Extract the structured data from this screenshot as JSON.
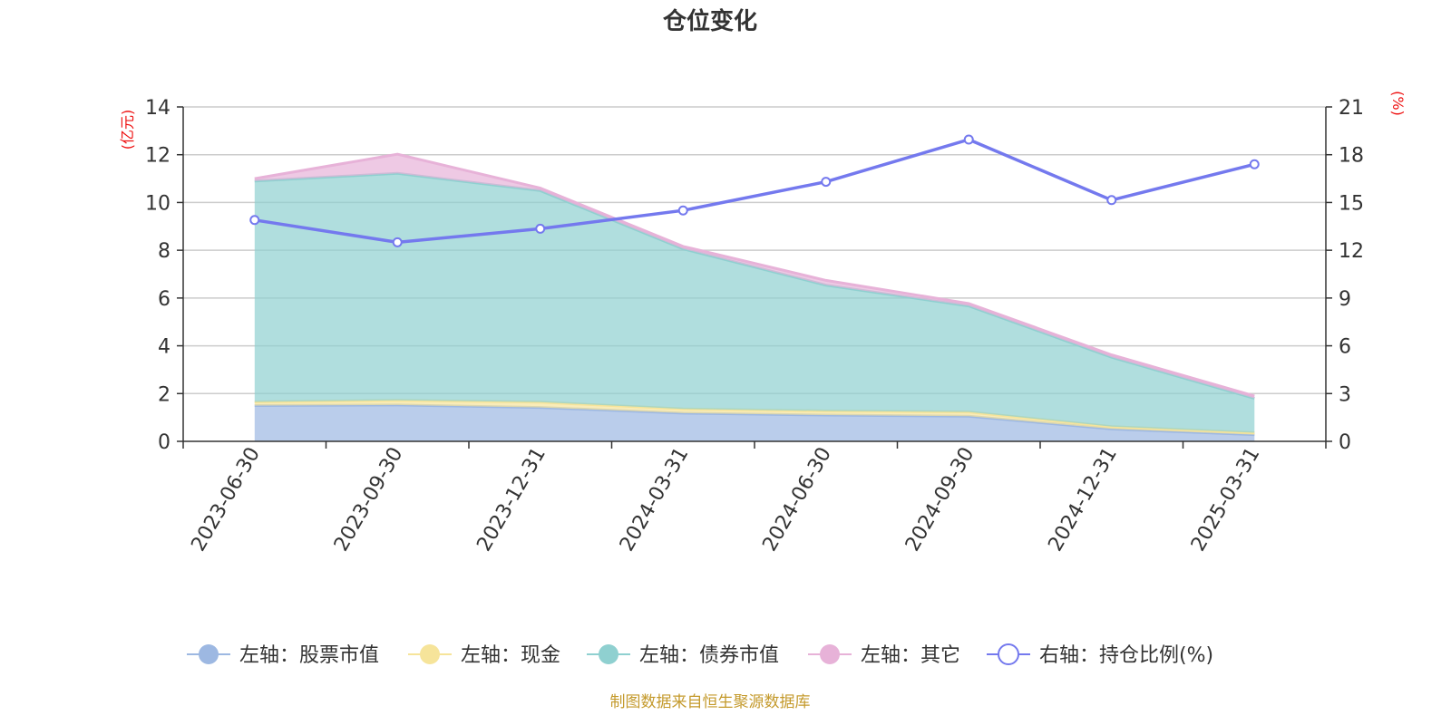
{
  "title": "仓位变化",
  "source_note": "制图数据来自恒生聚源数据库",
  "colors": {
    "stock": "#9db8e2",
    "cash": "#f6e49a",
    "bond": "#8fd0d0",
    "other": "#e7b2d8",
    "ratio": "#7479ee",
    "unit_text": "#ee1111",
    "source_text": "#c49a2c"
  },
  "chart_data": {
    "type": "area",
    "x": [
      "2023-06-30",
      "2023-09-30",
      "2023-12-31",
      "2024-03-31",
      "2024-06-30",
      "2024-09-30",
      "2024-12-31",
      "2025-03-31"
    ],
    "y_left_label": "(亿元)",
    "y_right_label": "(%)",
    "y_left_lim": [
      0,
      14
    ],
    "y_right_lim": [
      0,
      21
    ],
    "y_left_ticks": [
      0,
      2,
      4,
      6,
      8,
      10,
      12,
      14
    ],
    "y_right_ticks": [
      0,
      3,
      6,
      9,
      12,
      15,
      18,
      21
    ],
    "stacked": true,
    "series": [
      {
        "key": "stock",
        "name": "左轴：股票市值",
        "axis": "left",
        "type": "area",
        "values": [
          1.5,
          1.52,
          1.42,
          1.18,
          1.1,
          1.05,
          0.52,
          0.28
        ]
      },
      {
        "key": "cash",
        "name": "左轴：现金",
        "axis": "left",
        "type": "area",
        "values": [
          0.15,
          0.2,
          0.22,
          0.18,
          0.17,
          0.18,
          0.1,
          0.08
        ]
      },
      {
        "key": "bond",
        "name": "左轴：债券市值",
        "axis": "left",
        "type": "area",
        "values": [
          9.25,
          9.5,
          8.86,
          6.7,
          5.27,
          4.44,
          2.9,
          1.44
        ]
      },
      {
        "key": "other",
        "name": "左轴：其它",
        "axis": "left",
        "type": "area",
        "values": [
          0.1,
          0.8,
          0.1,
          0.1,
          0.2,
          0.1,
          0.1,
          0.1
        ]
      },
      {
        "key": "ratio",
        "name": "右轴：持仓比例(%)",
        "axis": "right",
        "type": "line",
        "values": [
          13.9,
          12.5,
          13.35,
          14.5,
          16.3,
          18.95,
          15.15,
          17.4
        ]
      }
    ],
    "legend_position": "bottom",
    "grid": true
  }
}
